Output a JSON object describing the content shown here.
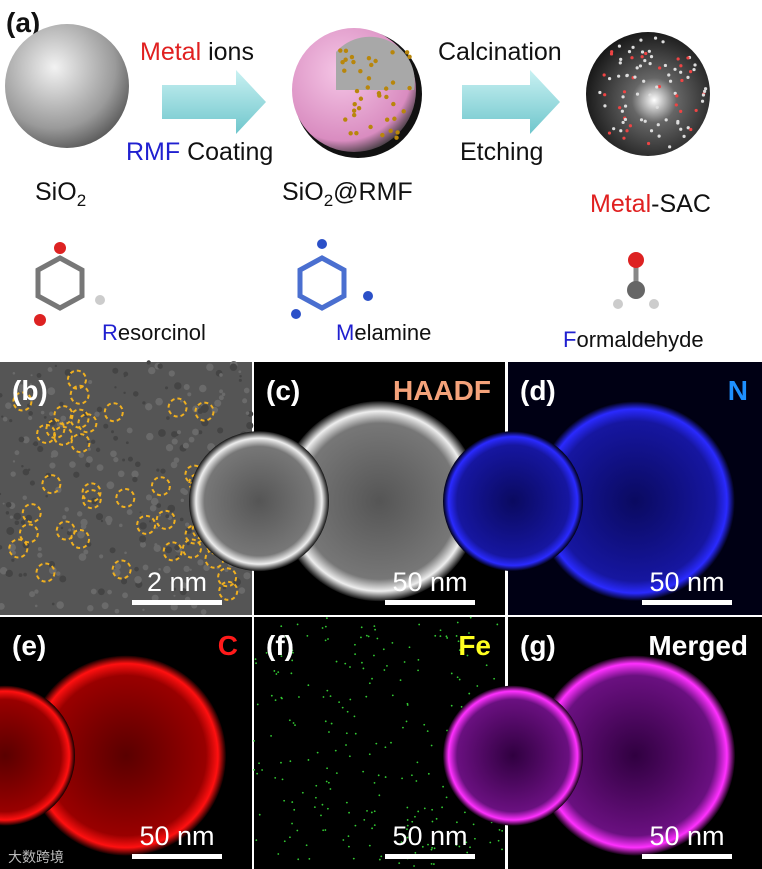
{
  "panel_a": {
    "label": "(a)",
    "arrow_1": {
      "top": {
        "highlight": "Metal",
        "rest": " ions"
      },
      "bottom": {
        "highlight": "RMF",
        "rest": " Coating"
      }
    },
    "arrow_2": {
      "top": "Calcination",
      "bottom": "Etching"
    },
    "stage_1": {
      "base": "SiO",
      "sub": "2"
    },
    "stage_2": {
      "base": "SiO",
      "sub": "2",
      "rest": "@RMF"
    },
    "stage_3": {
      "highlight": "Metal",
      "rest": "-SAC"
    },
    "molecules": [
      {
        "initial": "R",
        "rest": "esorcinol"
      },
      {
        "initial": "M",
        "rest": "elamine"
      },
      {
        "initial": "F",
        "rest": "ormaldehyde"
      }
    ]
  },
  "panels": [
    {
      "label": "(b)",
      "scale": "2 nm"
    },
    {
      "label": "(c)",
      "channel": "HAADF",
      "scale": "50 nm"
    },
    {
      "label": "(d)",
      "channel": "N",
      "scale": "50 nm"
    },
    {
      "label": "(e)",
      "channel": "C",
      "scale": "50 nm"
    },
    {
      "label": "(f)",
      "channel": "Fe",
      "scale": "50 nm"
    },
    {
      "label": "(g)",
      "channel": "Merged",
      "scale": "50 nm"
    }
  ],
  "watermark": "大数跨境"
}
